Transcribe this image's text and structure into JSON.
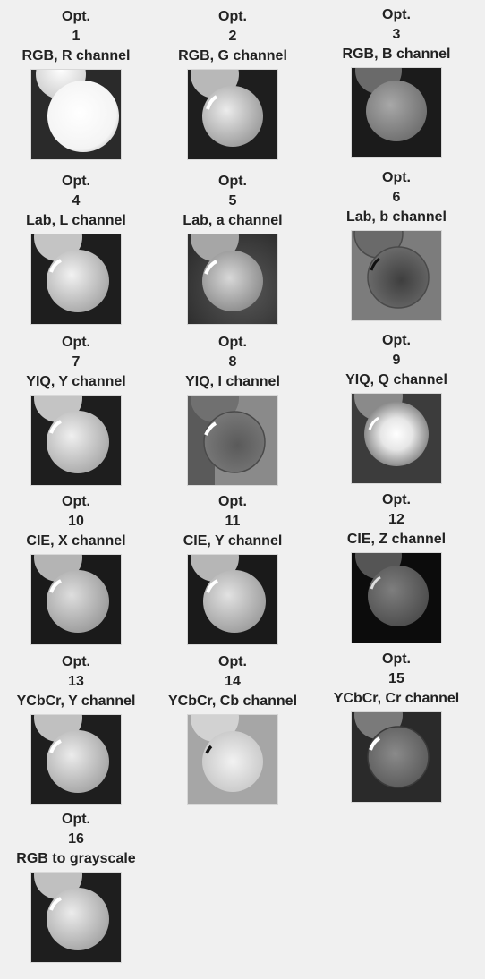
{
  "panels": [
    {
      "opt": "Opt.",
      "num": "1",
      "label": "RGB, R channel"
    },
    {
      "opt": "Opt.",
      "num": "2",
      "label": "RGB, G channel"
    },
    {
      "opt": "Opt.",
      "num": "3",
      "label": "RGB, B channel"
    },
    {
      "opt": "Opt.",
      "num": "4",
      "label": "Lab, L channel"
    },
    {
      "opt": "Opt.",
      "num": "5",
      "label": "Lab, a channel"
    },
    {
      "opt": "Opt.",
      "num": "6",
      "label": "Lab, b channel"
    },
    {
      "opt": "Opt.",
      "num": "7",
      "label": "YIQ, Y channel"
    },
    {
      "opt": "Opt.",
      "num": "8",
      "label": "YIQ, I channel"
    },
    {
      "opt": "Opt.",
      "num": "9",
      "label": "YIQ, Q channel"
    },
    {
      "opt": "Opt.",
      "num": "10",
      "label": "CIE, X channel"
    },
    {
      "opt": "Opt.",
      "num": "11",
      "label": "CIE, Y channel"
    },
    {
      "opt": "Opt.",
      "num": "12",
      "label": "CIE, Z channel"
    },
    {
      "opt": "Opt.",
      "num": "13",
      "label": "YCbCr, Y channel"
    },
    {
      "opt": "Opt.",
      "num": "14",
      "label": "YCbCr, Cb channel"
    },
    {
      "opt": "Opt.",
      "num": "15",
      "label": "YCbCr, Cr channel"
    },
    {
      "opt": "Opt.",
      "num": "16",
      "label": "RGB to grayscale"
    }
  ]
}
